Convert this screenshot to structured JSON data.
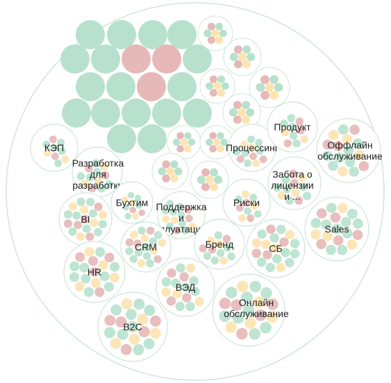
{
  "colors": {
    "green": "#b7e1cd",
    "red": "#e6b8b7",
    "yellow": "#fce3b0",
    "outline": "#cfe5d8",
    "text": "#222222"
  },
  "groups": [
    {
      "id": "kep",
      "label_lines": [
        "КЭП"
      ],
      "bubbles": 9
    },
    {
      "id": "razrabotka",
      "label_lines": [
        "Разработка",
        "для",
        "разработки"
      ],
      "bubbles": 12
    },
    {
      "id": "bi",
      "label_lines": [
        "BI"
      ],
      "bubbles": 22
    },
    {
      "id": "buhtim",
      "label_lines": [
        "Бухтим"
      ],
      "bubbles": 10
    },
    {
      "id": "podderzhka",
      "label_lines": [
        "Поддержка",
        "и",
        "эксплуатация ..."
      ],
      "bubbles": 14
    },
    {
      "id": "hr",
      "label_lines": [
        "HR"
      ],
      "bubbles": 20
    },
    {
      "id": "crm",
      "label_lines": [
        "CRM"
      ],
      "bubbles": 18
    },
    {
      "id": "brend",
      "label_lines": [
        "Бренд"
      ],
      "bubbles": 12
    },
    {
      "id": "ved",
      "label_lines": [
        "ВЭД"
      ],
      "bubbles": 16
    },
    {
      "id": "b2c",
      "label_lines": [
        "B2C"
      ],
      "bubbles": 28
    },
    {
      "id": "riski",
      "label_lines": [
        "Риски"
      ],
      "bubbles": 10
    },
    {
      "id": "processing",
      "label_lines": [
        "Процессинг"
      ],
      "bubbles": 12
    },
    {
      "id": "produkt",
      "label_lines": [
        "Продукт"
      ],
      "bubbles": 10
    },
    {
      "id": "zabota",
      "label_lines": [
        "Забота о",
        "лицензии",
        "и ..."
      ],
      "bubbles": 12
    },
    {
      "id": "offline",
      "label_lines": [
        "Оффлайн",
        "обслуживание"
      ],
      "bubbles": 16
    },
    {
      "id": "sb",
      "label_lines": [
        "СБ"
      ],
      "bubbles": 20
    },
    {
      "id": "sales",
      "label_lines": [
        "Sales"
      ],
      "bubbles": 24
    },
    {
      "id": "online",
      "label_lines": [
        "Онлайн",
        "обслуживание"
      ],
      "bubbles": 20
    }
  ]
}
